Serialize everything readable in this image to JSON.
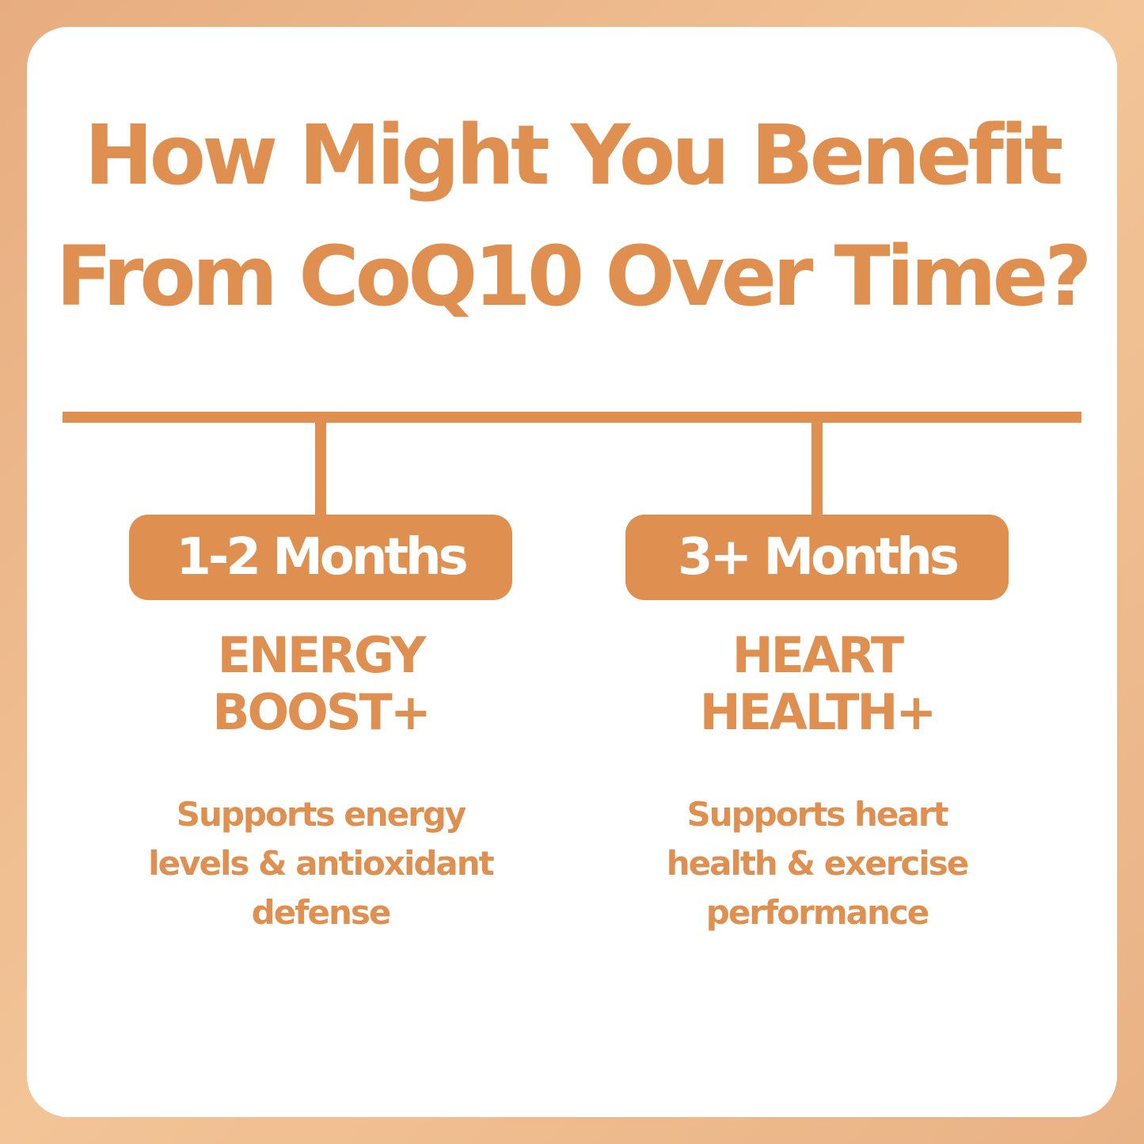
{
  "title": {
    "lines": [
      "How Might You Benefit",
      "From CoQ10 Over Time?"
    ]
  },
  "stages": [
    {
      "period": "1-2 Months",
      "heading": [
        "ENERGY",
        "BOOST+"
      ],
      "description": [
        "Supports energy",
        "levels & antioxidant",
        "defense"
      ]
    },
    {
      "period": "3+ Months",
      "heading": [
        "HEART",
        "HEALTH+"
      ],
      "description": [
        "Supports heart",
        "health & exercise",
        "performance"
      ]
    }
  ]
}
